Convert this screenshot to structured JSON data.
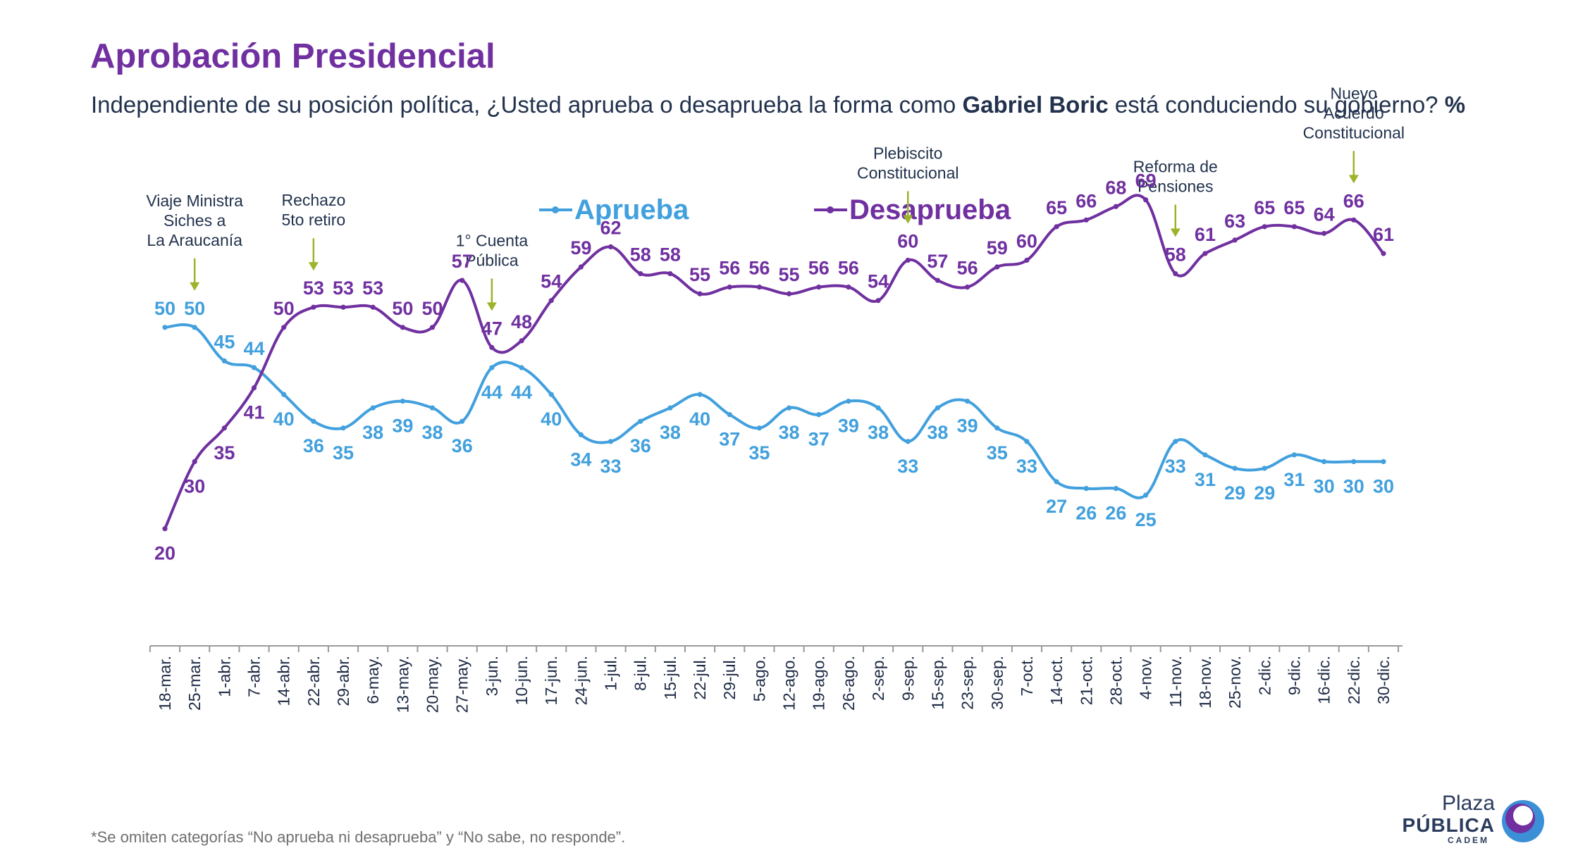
{
  "header": {
    "title": "Aprobación Presidencial",
    "question_part1": "Independiente de su posición política, ¿Usted aprueba o desaprueba la forma como ",
    "question_bold": "Gabriel Boric",
    "question_part2": " está conduciendo su gobierno? ",
    "question_unit": "%"
  },
  "footnote": "*Se omiten categorías “No aprueba ni desaprueba” y “No sabe, no responde”.",
  "logo": {
    "line1": "Plaza",
    "line2": "PÚBLICA",
    "line3": "CADEM"
  },
  "colors": {
    "aprueba": "#41a0dd",
    "desaprueba": "#7030a0",
    "annotation_arrow": "#9bb42a",
    "text_dark": "#22324d"
  },
  "chart_data": {
    "type": "line",
    "title": "Aprobación Presidencial",
    "legend_position": "top-center",
    "grid": false,
    "ylim": [
      20,
      69
    ],
    "categories": [
      "18-mar.",
      "25-mar.",
      "1-abr.",
      "7-abr.",
      "14-abr.",
      "22-abr.",
      "29-abr.",
      "6-may.",
      "13-may.",
      "20-may.",
      "27-may.",
      "3-jun.",
      "10-jun.",
      "17-jun.",
      "24-jun.",
      "1-jul.",
      "8-jul.",
      "15-jul.",
      "22-jul.",
      "29-jul.",
      "5-ago.",
      "12-ago.",
      "19-ago.",
      "26-ago.",
      "2-sep.",
      "9-sep.",
      "15-sep.",
      "23-sep.",
      "30-sep.",
      "7-oct.",
      "14-oct.",
      "21-oct.",
      "28-oct.",
      "4-nov.",
      "11-nov.",
      "18-nov.",
      "25-nov.",
      "2-dic.",
      "9-dic.",
      "16-dic.",
      "22-dic.",
      "30-dic."
    ],
    "series": [
      {
        "name": "Aprueba",
        "color": "#41a0dd",
        "values": [
          50,
          50,
          45,
          44,
          40,
          36,
          35,
          38,
          39,
          38,
          36,
          44,
          44,
          40,
          34,
          33,
          36,
          38,
          40,
          37,
          35,
          38,
          37,
          39,
          38,
          33,
          38,
          39,
          35,
          33,
          27,
          26,
          26,
          25,
          33,
          31,
          29,
          29,
          31,
          30,
          30,
          30
        ]
      },
      {
        "name": "Desaprueba",
        "color": "#7030a0",
        "values": [
          20,
          30,
          35,
          41,
          50,
          53,
          53,
          53,
          50,
          50,
          57,
          47,
          48,
          54,
          59,
          62,
          58,
          58,
          55,
          56,
          56,
          55,
          56,
          56,
          54,
          60,
          57,
          56,
          59,
          60,
          65,
          66,
          68,
          69,
          58,
          61,
          63,
          65,
          65,
          64,
          66,
          61
        ]
      }
    ],
    "annotations": [
      {
        "index": 1,
        "lines": [
          "Viaje Ministra",
          "Siches a",
          "La Araucanía"
        ]
      },
      {
        "index": 5,
        "lines": [
          "Rechazo",
          "5to retiro"
        ]
      },
      {
        "index": 11,
        "lines": [
          "1° Cuenta",
          "Pública"
        ]
      },
      {
        "index": 25,
        "lines": [
          "Plebiscito",
          "Constitucional"
        ]
      },
      {
        "index": 34,
        "lines": [
          "Reforma de",
          "Pensiones"
        ]
      },
      {
        "index": 40,
        "lines": [
          "Nuevo",
          "Acuerdo",
          "Constitucional"
        ]
      }
    ]
  }
}
